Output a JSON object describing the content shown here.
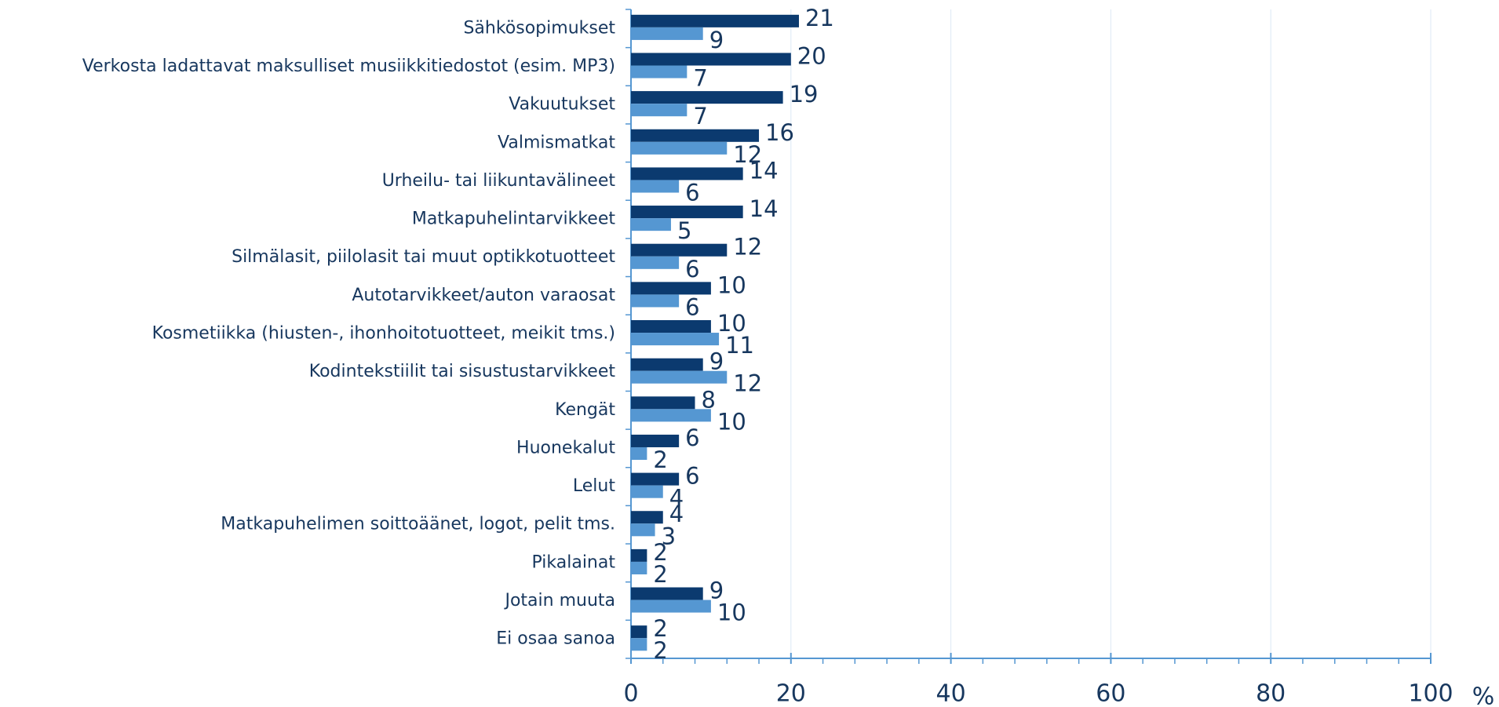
{
  "chart_data": {
    "type": "hbar",
    "categories": [
      "Sähkösopimukset",
      "Verkosta ladattavat maksulliset musiikkitiedostot (esim. MP3)",
      "Vakuutukset",
      "Valmismatkat",
      "Urheilu- tai liikuntavälineet",
      "Matkapuhelintarvikkeet",
      "Silmälasit, piilolasit tai muut optikkotuotteet",
      "Autotarvikkeet/auton varaosat",
      "Kosmetiikka (hiusten-, ihonhoitotuotteet, meikit tms.)",
      "Kodintekstiilit tai sisustustarvikkeet",
      "Kengät",
      "Huonekalut",
      "Lelut",
      "Matkapuhelimen soittoäänet, logot, pelit tms.",
      "Pikalainat",
      "Jotain muuta",
      "Ei osaa sanoa"
    ],
    "series": [
      {
        "color": "#0b3a6f",
        "values": [
          21,
          20,
          19,
          16,
          14,
          14,
          12,
          10,
          10,
          9,
          8,
          6,
          6,
          4,
          2,
          9,
          2
        ]
      },
      {
        "color": "#5597d2",
        "values": [
          9,
          7,
          7,
          12,
          6,
          5,
          6,
          6,
          11,
          12,
          10,
          2,
          4,
          3,
          2,
          10,
          2
        ]
      }
    ],
    "xlim": [
      0,
      100
    ],
    "xticks": [
      0,
      20,
      40,
      60,
      80,
      100
    ],
    "x_label": "%",
    "grid": true
  }
}
